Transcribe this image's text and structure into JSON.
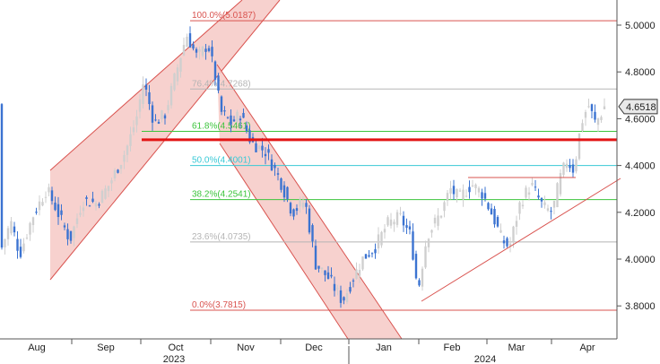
{
  "chart_data": {
    "type": "candlestick",
    "title": "",
    "xlabel": "",
    "ylabel": "",
    "ylim": [
      3.66,
      5.08
    ],
    "y_ticks": [
      "4.0000",
      "4.2000",
      "4.4000",
      "4.6000",
      "4.8000",
      "5.0000",
      "3.8000"
    ],
    "month_labels": [
      "Aug",
      "Sep",
      "Oct",
      "Nov",
      "Dec",
      "Jan",
      "Feb",
      "Mar",
      "Apr"
    ],
    "year_labels": [
      "2023",
      "2024"
    ],
    "last_price_label": "4.6518",
    "last_price": 4.6518,
    "fib_levels": [
      {
        "label": "100.0%(5.0187)",
        "value": 5.0187,
        "color": "#d9534f"
      },
      {
        "label": "76.4%(4.7268)",
        "value": 4.7268,
        "color": "#b5b5b5"
      },
      {
        "label": "61.8%(4.5461)",
        "value": 4.5461,
        "color": "#3cc43c"
      },
      {
        "label": "50.0%(4.4001)",
        "value": 4.4001,
        "color": "#39c9d6"
      },
      {
        "label": "38.2%(4.2541)",
        "value": 4.2541,
        "color": "#3cc43c"
      },
      {
        "label": "23.6%(4.0735)",
        "value": 4.0735,
        "color": "#b5b5b5"
      },
      {
        "label": "0.0%(3.7815)",
        "value": 3.7815,
        "color": "#d9534f"
      }
    ],
    "support_level": 4.51,
    "colors": {
      "up": "#cfcfcf",
      "down": "#3b73d1",
      "channel": "#d9534f",
      "channel_fill": "#f6c9c6",
      "support": "#e31414"
    }
  }
}
